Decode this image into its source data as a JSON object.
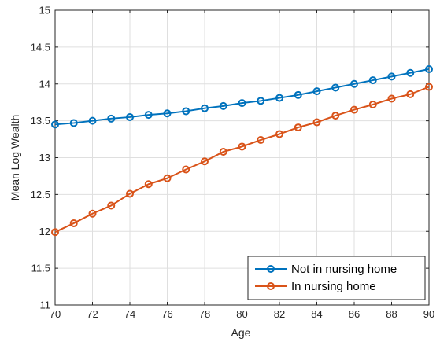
{
  "chart_data": {
    "type": "line",
    "title": "",
    "xlabel": "Age",
    "ylabel": "Mean Log Wealth",
    "xlim": [
      70,
      90
    ],
    "ylim": [
      11,
      15
    ],
    "x_ticks": [
      70,
      72,
      74,
      76,
      78,
      80,
      82,
      84,
      86,
      88,
      90
    ],
    "y_ticks": [
      11,
      11.5,
      12,
      12.5,
      13,
      13.5,
      14,
      14.5,
      15
    ],
    "grid": true,
    "legend_position": "bottom-right",
    "x": [
      70,
      71,
      72,
      73,
      74,
      75,
      76,
      77,
      78,
      79,
      80,
      81,
      82,
      83,
      84,
      85,
      86,
      87,
      88,
      89,
      90
    ],
    "series": [
      {
        "name": "Not in nursing home",
        "color": "#0072BD",
        "marker": "circle",
        "values": [
          13.45,
          13.47,
          13.5,
          13.53,
          13.55,
          13.58,
          13.6,
          13.63,
          13.67,
          13.7,
          13.74,
          13.77,
          13.81,
          13.85,
          13.9,
          13.95,
          14.0,
          14.05,
          14.1,
          14.15,
          14.2
        ]
      },
      {
        "name": "In nursing home",
        "color": "#D95319",
        "marker": "circle",
        "values": [
          11.99,
          12.11,
          12.24,
          12.35,
          12.51,
          12.64,
          12.72,
          12.84,
          12.95,
          13.08,
          13.15,
          13.24,
          13.32,
          13.41,
          13.48,
          13.57,
          13.65,
          13.72,
          13.8,
          13.86,
          13.96
        ]
      }
    ]
  }
}
